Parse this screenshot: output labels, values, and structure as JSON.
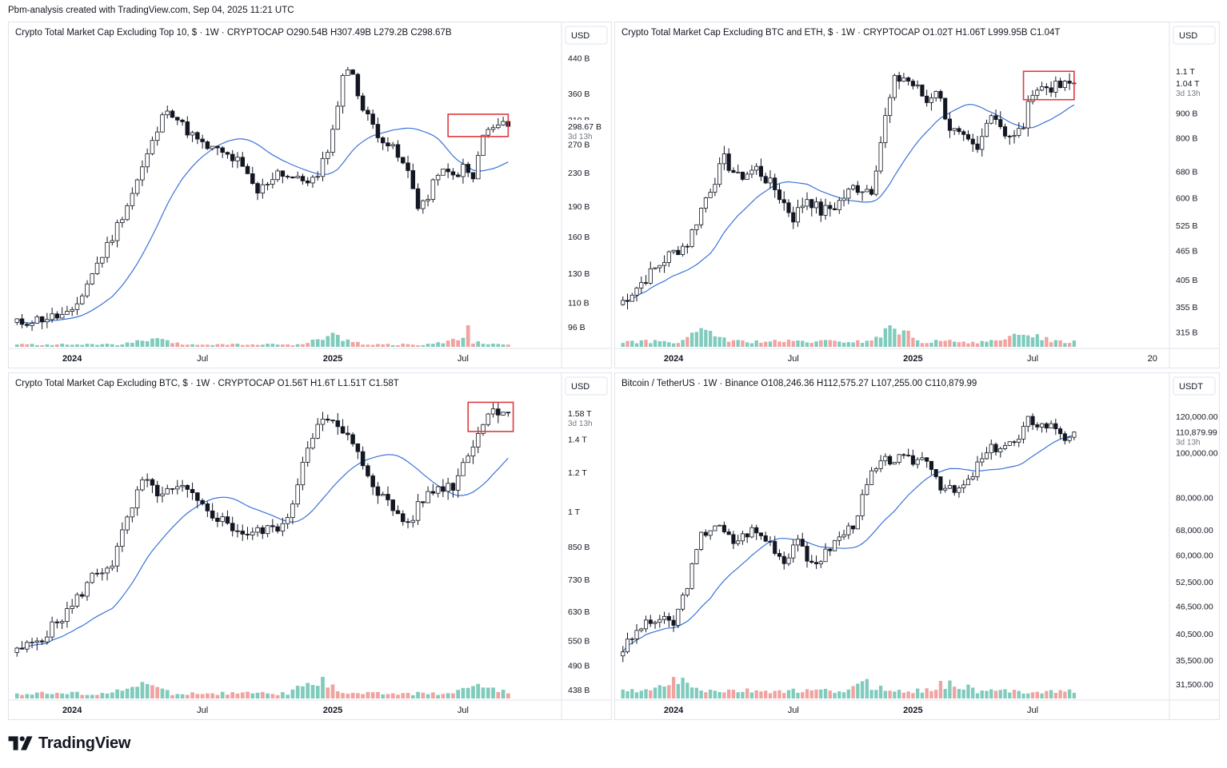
{
  "header": {
    "text": "Pbm-analysis created with TradingView.com, Sep 04, 2025 11:21 UTC"
  },
  "footer": {
    "brand": "TradingView"
  },
  "colors": {
    "up": "#ffffff",
    "down": "#131722",
    "vol_up": "#7fcbbc",
    "vol_down": "#f0a3a0",
    "ma": "#3a73d9",
    "box": "#e03a3e",
    "grid": "#e0e3eb"
  },
  "chart_data": [
    {
      "type": "candlestick",
      "id": "top10",
      "title": "Crypto Total Market Cap Excluding Top 10, $ · 1W · CRYPTOCAP  O290.54B  H307.49B  L279.2B  C298.67B",
      "currency": "USD",
      "y_scale": "log",
      "ylim": [
        88,
        470
      ],
      "y_ticks": [
        {
          "label": "440 B",
          "value": 440
        },
        {
          "label": "360 B",
          "value": 360
        },
        {
          "label": "310 B",
          "value": 310
        },
        {
          "label": "270 B",
          "value": 270
        },
        {
          "label": "230 B",
          "value": 230
        },
        {
          "label": "190 B",
          "value": 190
        },
        {
          "label": "160 B",
          "value": 160
        },
        {
          "label": "130 B",
          "value": 130
        },
        {
          "label": "110 B",
          "value": 110
        },
        {
          "label": "96 B",
          "value": 96
        }
      ],
      "last_label": {
        "text": "298.67 B",
        "value": 298.67
      },
      "countdown": "3d 13h",
      "x_labels": [
        {
          "label": "2024",
          "index": 11
        },
        {
          "label": "Jul",
          "index": 37
        },
        {
          "label": "2025",
          "index": 63
        },
        {
          "label": "Jul",
          "index": 89
        }
      ],
      "x_domain": [
        -1,
        108
      ],
      "ma_period": 20,
      "box": {
        "i0": 86,
        "i1": 98,
        "y0": 320,
        "y1": 282
      },
      "control_points": [
        [
          0,
          98
        ],
        [
          6,
          101
        ],
        [
          11,
          103
        ],
        [
          15,
          130
        ],
        [
          19,
          160
        ],
        [
          23,
          205
        ],
        [
          27,
          272
        ],
        [
          30,
          335
        ],
        [
          33,
          300
        ],
        [
          37,
          268
        ],
        [
          40,
          260
        ],
        [
          44,
          245
        ],
        [
          48,
          205
        ],
        [
          52,
          232
        ],
        [
          56,
          220
        ],
        [
          60,
          222
        ],
        [
          63,
          290
        ],
        [
          65,
          402
        ],
        [
          67,
          405
        ],
        [
          69,
          328
        ],
        [
          72,
          288
        ],
        [
          75,
          262
        ],
        [
          78,
          230
        ],
        [
          80,
          192
        ],
        [
          82,
          198
        ],
        [
          84,
          232
        ],
        [
          87,
          225
        ],
        [
          89,
          236
        ],
        [
          91,
          221
        ],
        [
          93,
          285
        ],
        [
          96,
          300
        ],
        [
          98,
          298.67
        ]
      ],
      "seed": 11,
      "volatility": 0.06,
      "volume": {
        "base": 10,
        "spike_index": 90,
        "spike_value": 100,
        "bumps": [
          [
            27,
            3.2
          ],
          [
            63,
            5.2
          ],
          [
            88,
            3.2
          ]
        ]
      }
    },
    {
      "type": "candlestick",
      "id": "ex-btc-eth",
      "title": "Crypto Total Market Cap Excluding BTC and ETH, $ · 1W · CRYPTOCAP  O1.02T  H1.06T  L999.95B  C1.04T",
      "currency": "USD",
      "y_scale": "log",
      "ylim": [
        300,
        1240
      ],
      "y_ticks": [
        {
          "label": "1.1 T",
          "value": 1100
        },
        {
          "label": "900 B",
          "value": 900
        },
        {
          "label": "800 B",
          "value": 800
        },
        {
          "label": "680 B",
          "value": 680
        },
        {
          "label": "600 B",
          "value": 600
        },
        {
          "label": "525 B",
          "value": 525
        },
        {
          "label": "465 B",
          "value": 465
        },
        {
          "label": "405 B",
          "value": 405
        },
        {
          "label": "355 B",
          "value": 355
        },
        {
          "label": "315 B",
          "value": 315
        }
      ],
      "last_label": {
        "text": "1.04 T",
        "value": 1040
      },
      "countdown": "3d 13h",
      "x_labels": [
        {
          "label": "2024",
          "index": 11
        },
        {
          "label": "Jul",
          "index": 37
        },
        {
          "label": "2025",
          "index": 63
        },
        {
          "label": "Jul",
          "index": 89
        },
        {
          "label": "20",
          "index": 115
        }
      ],
      "x_domain": [
        -1,
        118
      ],
      "ma_period": 20,
      "box": {
        "i0": 87,
        "i1": 98,
        "y0": 1100,
        "y1": 960
      },
      "control_points": [
        [
          0,
          365
        ],
        [
          5,
          408
        ],
        [
          10,
          455
        ],
        [
          14,
          482
        ],
        [
          18,
          600
        ],
        [
          22,
          720
        ],
        [
          25,
          660
        ],
        [
          29,
          690
        ],
        [
          33,
          625
        ],
        [
          37,
          545
        ],
        [
          40,
          600
        ],
        [
          43,
          560
        ],
        [
          46,
          575
        ],
        [
          50,
          630
        ],
        [
          54,
          625
        ],
        [
          57,
          880
        ],
        [
          59,
          1050
        ],
        [
          61,
          1070
        ],
        [
          64,
          1010
        ],
        [
          66,
          950
        ],
        [
          68,
          1015
        ],
        [
          71,
          840
        ],
        [
          74,
          790
        ],
        [
          77,
          745
        ],
        [
          80,
          915
        ],
        [
          83,
          820
        ],
        [
          85,
          800
        ],
        [
          87,
          850
        ],
        [
          89,
          1010
        ],
        [
          92,
          1020
        ],
        [
          95,
          1020
        ],
        [
          98,
          1040
        ]
      ],
      "seed": 7,
      "volatility": 0.06,
      "volume": {
        "base": 12,
        "spike_index": 59,
        "spike_value": 46,
        "bumps": [
          [
            18,
            3
          ],
          [
            59,
            3.6
          ],
          [
            88,
            2.8
          ]
        ]
      }
    },
    {
      "type": "candlestick",
      "id": "ex-btc",
      "title": "Crypto Total Market Cap Excluding BTC, $ · 1W · CRYPTOCAP  O1.56T  H1.6T  L1.51T  C1.58T",
      "currency": "USD",
      "y_scale": "log",
      "ylim": [
        430,
        1700
      ],
      "y_ticks": [
        {
          "label": "1.4 T",
          "value": 1400
        },
        {
          "label": "1.2 T",
          "value": 1200
        },
        {
          "label": "1 T",
          "value": 1000
        },
        {
          "label": "850 B",
          "value": 850
        },
        {
          "label": "730 B",
          "value": 730
        },
        {
          "label": "630 B",
          "value": 630
        },
        {
          "label": "550 B",
          "value": 550
        },
        {
          "label": "490 B",
          "value": 490
        },
        {
          "label": "438 B",
          "value": 438
        }
      ],
      "last_label": {
        "text": "1.58 T",
        "value": 1580
      },
      "countdown": "3d 13h",
      "x_labels": [
        {
          "label": "2024",
          "index": 11
        },
        {
          "label": "Jul",
          "index": 37
        },
        {
          "label": "2025",
          "index": 63
        },
        {
          "label": "Jul",
          "index": 89
        }
      ],
      "x_domain": [
        -1,
        108
      ],
      "ma_period": 20,
      "box": {
        "i0": 90,
        "i1": 99,
        "y0": 1660,
        "y1": 1450
      },
      "control_points": [
        [
          0,
          520
        ],
        [
          6,
          570
        ],
        [
          11,
          645
        ],
        [
          15,
          740
        ],
        [
          19,
          790
        ],
        [
          22,
          960
        ],
        [
          25,
          1150
        ],
        [
          29,
          1080
        ],
        [
          33,
          1115
        ],
        [
          37,
          1020
        ],
        [
          40,
          975
        ],
        [
          43,
          930
        ],
        [
          46,
          900
        ],
        [
          50,
          920
        ],
        [
          54,
          950
        ],
        [
          57,
          1270
        ],
        [
          60,
          1530
        ],
        [
          63,
          1500
        ],
        [
          66,
          1410
        ],
        [
          69,
          1245
        ],
        [
          72,
          1100
        ],
        [
          75,
          1010
        ],
        [
          78,
          945
        ],
        [
          81,
          1060
        ],
        [
          84,
          1120
        ],
        [
          87,
          1130
        ],
        [
          89,
          1250
        ],
        [
          92,
          1450
        ],
        [
          95,
          1620
        ],
        [
          98,
          1580
        ]
      ],
      "seed": 5,
      "volatility": 0.055,
      "volume": {
        "base": 11,
        "spike_index": 60,
        "spike_value": 30,
        "bumps": [
          [
            25,
            3
          ],
          [
            60,
            3.6
          ],
          [
            92,
            2.6
          ]
        ]
      }
    },
    {
      "type": "candlestick",
      "id": "btc-usdt",
      "title": "Bitcoin / TetherUS · 1W · Binance  O108,246.36  H112,575.27  L107,255.00  C110,879.99",
      "currency": "USDT",
      "y_scale": "log",
      "ylim": [
        30000,
        132000
      ],
      "y_ticks": [
        {
          "label": "120,000.00",
          "value": 120000
        },
        {
          "label": "100,000.00",
          "value": 100000
        },
        {
          "label": "80,000.00",
          "value": 80000
        },
        {
          "label": "68,000.00",
          "value": 68000
        },
        {
          "label": "60,000.00",
          "value": 60000
        },
        {
          "label": "52,500.00",
          "value": 52500
        },
        {
          "label": "46,500.00",
          "value": 46500
        },
        {
          "label": "40,500.00",
          "value": 40500
        },
        {
          "label": "35,500.00",
          "value": 35500
        },
        {
          "label": "31,500.00",
          "value": 31500
        }
      ],
      "last_label": {
        "text": "110,879.99",
        "value": 110880
      },
      "countdown": "3d 13h",
      "x_labels": [
        {
          "label": "2024",
          "index": 11
        },
        {
          "label": "Jul",
          "index": 37
        },
        {
          "label": "2025",
          "index": 63
        },
        {
          "label": "Jul",
          "index": 89
        }
      ],
      "x_domain": [
        -1,
        118
      ],
      "ma_period": 20,
      "box": null,
      "control_points": [
        [
          0,
          37500
        ],
        [
          4,
          42000
        ],
        [
          8,
          43500
        ],
        [
          11,
          42500
        ],
        [
          14,
          52000
        ],
        [
          17,
          66000
        ],
        [
          20,
          70000
        ],
        [
          24,
          64000
        ],
        [
          28,
          68000
        ],
        [
          32,
          64000
        ],
        [
          35,
          58000
        ],
        [
          38,
          66000
        ],
        [
          40,
          57000
        ],
        [
          43,
          59000
        ],
        [
          46,
          64000
        ],
        [
          50,
          70000
        ],
        [
          54,
          90000
        ],
        [
          57,
          96000
        ],
        [
          60,
          97000
        ],
        [
          63,
          96000
        ],
        [
          66,
          98000
        ],
        [
          69,
          85000
        ],
        [
          72,
          82000
        ],
        [
          75,
          86000
        ],
        [
          77,
          94000
        ],
        [
          80,
          102000
        ],
        [
          83,
          104000
        ],
        [
          86,
          106000
        ],
        [
          88,
          118000
        ],
        [
          91,
          115000
        ],
        [
          94,
          114000
        ],
        [
          96,
          108000
        ],
        [
          98,
          110880
        ]
      ],
      "seed": 3,
      "volatility": 0.05,
      "volume": {
        "base": 12,
        "spike_index": 12,
        "spike_value": 26,
        "bumps": [
          [
            12,
            2.8
          ],
          [
            53,
            2.0
          ],
          [
            71,
            2.2
          ]
        ]
      }
    }
  ]
}
